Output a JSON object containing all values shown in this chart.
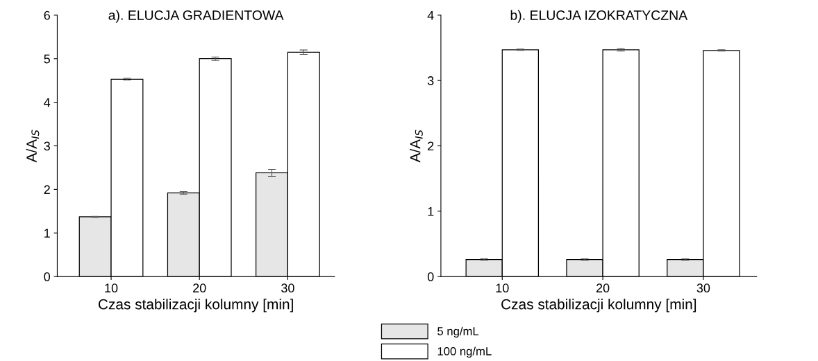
{
  "chart_data": [
    {
      "type": "bar",
      "title": "a). ELUCJA GRADIENTOWA",
      "xlabel": "Czas stabilizacji kolumny [min]",
      "ylabel": "A/A$_{IS}$",
      "categories": [
        "10",
        "20",
        "30"
      ],
      "ylim": [
        0,
        6
      ],
      "yticks": [
        0,
        1,
        2,
        3,
        4,
        5,
        6
      ],
      "grid": false,
      "series": [
        {
          "color": "#e6e6e6",
          "values": [
            1.37,
            1.92,
            2.38
          ],
          "errors": [
            0.01,
            0.03,
            0.08
          ]
        },
        {
          "color": "#ffffff",
          "values": [
            4.53,
            5.0,
            5.15
          ],
          "errors": [
            0.02,
            0.04,
            0.05
          ]
        }
      ]
    },
    {
      "type": "bar",
      "title": "b). ELUCJA IZOKRATYCZNA",
      "xlabel": "Czas stabilizacji kolumny [min]",
      "ylabel": "A/A$_{IS}$",
      "categories": [
        "10",
        "20",
        "30"
      ],
      "ylim": [
        0,
        4
      ],
      "yticks": [
        0,
        1,
        2,
        3,
        4
      ],
      "grid": false,
      "legend": "bottom left",
      "series": [
        {
          "name": "5 ng/mL",
          "color": "#e6e6e6",
          "values": [
            0.26,
            0.26,
            0.26
          ],
          "errors": [
            0.01,
            0.01,
            0.01
          ]
        },
        {
          "name": "100 ng/mL",
          "color": "#ffffff",
          "values": [
            3.47,
            3.47,
            3.46
          ],
          "errors": [
            0.01,
            0.02,
            0.01
          ]
        }
      ]
    }
  ]
}
